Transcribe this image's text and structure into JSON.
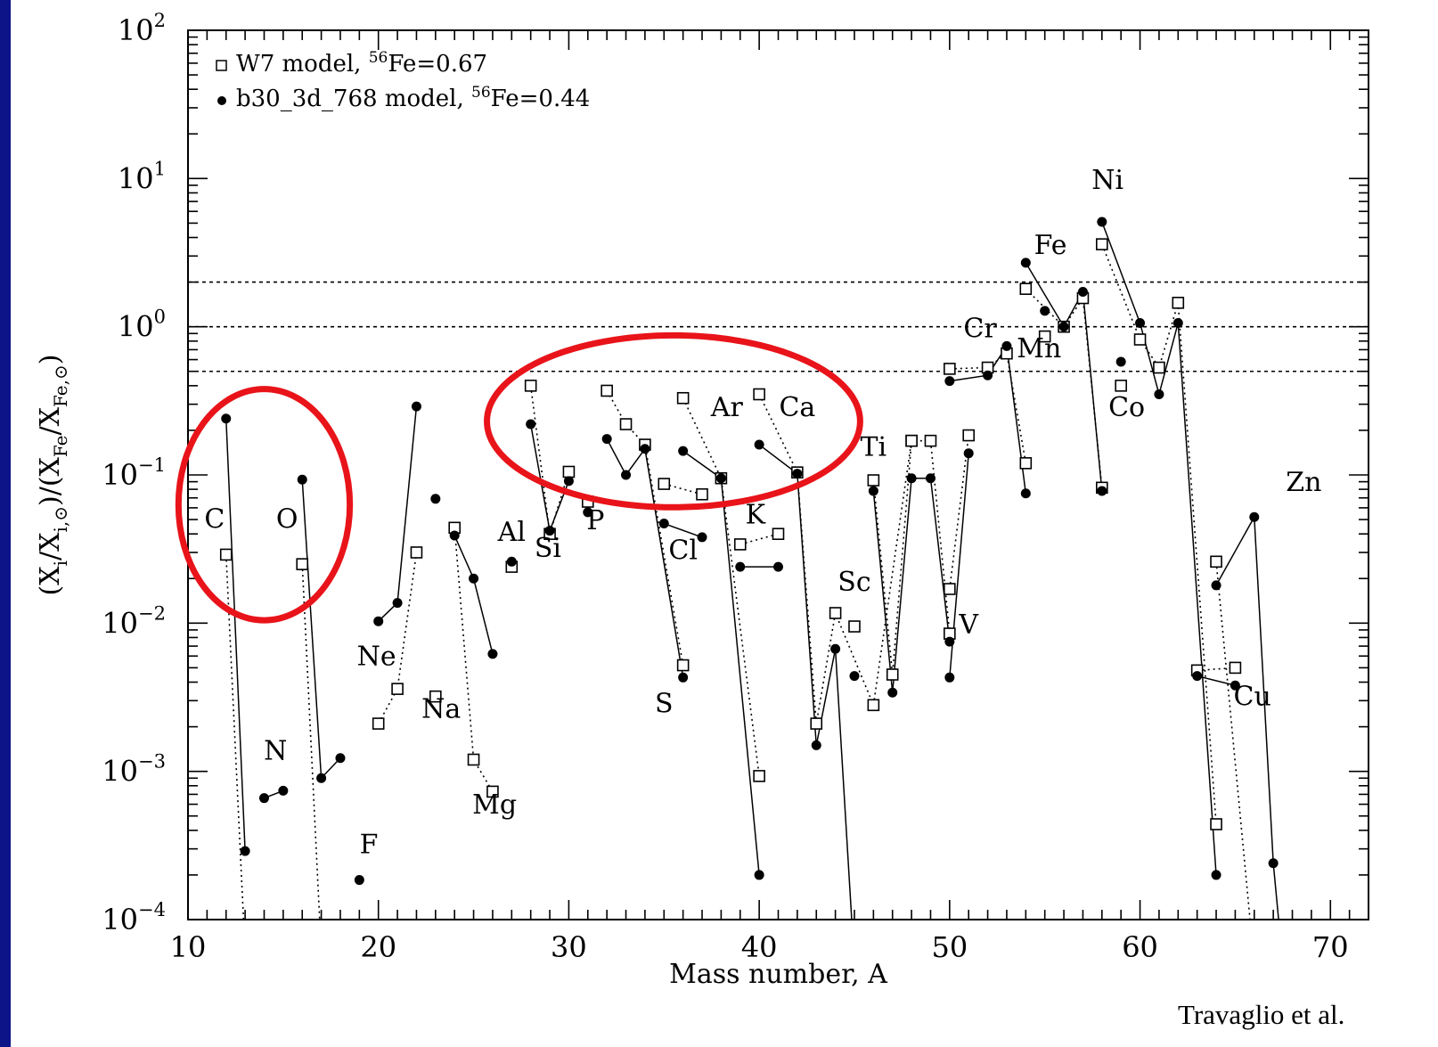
{
  "chart_data": {
    "type": "scatter",
    "y_scale": "log",
    "xlim": [
      10,
      72
    ],
    "ylim": [
      0.0001,
      100
    ],
    "xticks": [
      10,
      20,
      30,
      40,
      50,
      60,
      70
    ],
    "xtick_labels": [
      "10",
      "20",
      "30",
      "40",
      "50",
      "60",
      "70"
    ],
    "yticks": [
      0.0001,
      0.001,
      0.01,
      0.1,
      1,
      10,
      100
    ],
    "ytick_labels": [
      {
        "base": "10",
        "exp": "−4"
      },
      {
        "base": "10",
        "exp": "−3"
      },
      {
        "base": "10",
        "exp": "−2"
      },
      {
        "base": "10",
        "exp": "−1"
      },
      {
        "base": "10",
        "exp": "0"
      },
      {
        "base": "10",
        "exp": "1"
      },
      {
        "base": "10",
        "exp": "2"
      }
    ],
    "xlabel": "Mass number, A",
    "ylabel": {
      "a": "(X",
      "b": "i",
      "c": "/X",
      "d": "i,⊙",
      "e": ")/(X",
      "f": "Fe",
      "g": "/X",
      "h": "Fe,⊙",
      "i": ")"
    },
    "reference_lines": [
      2,
      1,
      0.5
    ],
    "legend": {
      "placement": "top-left",
      "items": [
        {
          "marker": "open-square",
          "pre": "W7 model, ",
          "sup": "56",
          "post": "Fe=0.67"
        },
        {
          "marker": "filled-circle",
          "pre": "b30_3d_768 model, ",
          "sup": "56",
          "post": "Fe=0.44"
        }
      ]
    },
    "series": [
      {
        "name": "W7 model",
        "marker": "open-square",
        "line": "dotted",
        "groups": [
          [
            [
              12,
              0.029
            ],
            [
              13,
              6e-05
            ]
          ],
          [
            [
              14,
              null
            ]
          ],
          [
            [
              16,
              0.025
            ],
            [
              17,
              6e-05
            ]
          ],
          [
            [
              20,
              0.0021
            ],
            [
              21,
              0.0036
            ],
            [
              22,
              0.03
            ]
          ],
          [
            [
              23,
              0.0032
            ]
          ],
          [
            [
              24,
              0.044
            ],
            [
              25,
              0.0012
            ],
            [
              26,
              0.00073
            ]
          ],
          [
            [
              27,
              0.024
            ]
          ],
          [
            [
              28,
              0.4
            ],
            [
              29,
              0.04
            ],
            [
              30,
              0.105
            ]
          ],
          [
            [
              31,
              0.066
            ]
          ],
          [
            [
              32,
              0.37
            ],
            [
              33,
              0.22
            ],
            [
              34,
              0.16
            ],
            [
              36,
              0.0052
            ]
          ],
          [
            [
              35,
              0.087
            ],
            [
              37,
              0.074
            ]
          ],
          [
            [
              36,
              0.33
            ],
            [
              38,
              0.095
            ],
            [
              40,
              0.00093
            ]
          ],
          [
            [
              39,
              0.034
            ],
            [
              41,
              0.04
            ]
          ],
          [
            [
              40,
              0.35
            ],
            [
              42,
              0.104
            ],
            [
              43,
              0.0021
            ],
            [
              44,
              0.0117
            ],
            [
              46,
              0.0028
            ],
            [
              48,
              0.17
            ]
          ],
          [
            [
              45,
              0.0095
            ]
          ],
          [
            [
              46,
              0.092
            ],
            [
              47,
              0.0045
            ],
            [
              48,
              0.17
            ],
            [
              49,
              0.17
            ],
            [
              50,
              0.0085
            ]
          ],
          [
            [
              50,
              0.017
            ],
            [
              51,
              0.185
            ]
          ],
          [
            [
              50,
              0.52
            ],
            [
              52,
              0.53
            ],
            [
              53,
              0.66
            ],
            [
              54,
              0.12
            ]
          ],
          [
            [
              55,
              0.86
            ]
          ],
          [
            [
              54,
              1.8
            ],
            [
              56,
              1.0
            ],
            [
              57,
              1.56
            ],
            [
              58,
              0.082
            ]
          ],
          [
            [
              59,
              0.4
            ]
          ],
          [
            [
              58,
              3.6
            ],
            [
              60,
              0.82
            ],
            [
              61,
              0.53
            ],
            [
              62,
              1.45
            ],
            [
              64,
              0.00044
            ]
          ],
          [
            [
              63,
              0.0048
            ],
            [
              65,
              0.005
            ]
          ],
          [
            [
              64,
              0.026
            ],
            [
              66,
              5e-05
            ]
          ]
        ]
      },
      {
        "name": "b30_3d_768 model",
        "marker": "filled-circle",
        "line": "solid",
        "groups": [
          [
            [
              12,
              0.24
            ],
            [
              13,
              0.00029
            ]
          ],
          [
            [
              14,
              0.00066
            ],
            [
              15,
              0.00074
            ]
          ],
          [
            [
              16,
              0.093
            ],
            [
              17,
              0.0009
            ],
            [
              18,
              0.00123
            ]
          ],
          [
            [
              19,
              0.000185
            ]
          ],
          [
            [
              20,
              0.0103
            ],
            [
              21,
              0.0137
            ],
            [
              22,
              0.29
            ]
          ],
          [
            [
              23,
              0.069
            ]
          ],
          [
            [
              24,
              0.039
            ],
            [
              25,
              0.02
            ],
            [
              26,
              0.0062
            ]
          ],
          [
            [
              27,
              0.026
            ]
          ],
          [
            [
              28,
              0.22
            ],
            [
              29,
              0.042
            ],
            [
              30,
              0.091
            ]
          ],
          [
            [
              31,
              0.056
            ]
          ],
          [
            [
              32,
              0.175
            ],
            [
              33,
              0.1
            ],
            [
              34,
              0.15
            ],
            [
              36,
              0.0043
            ]
          ],
          [
            [
              35,
              0.047
            ],
            [
              37,
              0.038
            ]
          ],
          [
            [
              36,
              0.145
            ],
            [
              38,
              0.095
            ],
            [
              40,
              0.0002
            ]
          ],
          [
            [
              39,
              0.024
            ],
            [
              41,
              0.024
            ]
          ],
          [
            [
              40,
              0.16
            ],
            [
              42,
              0.102
            ],
            [
              43,
              0.0015
            ],
            [
              44,
              0.0067
            ],
            [
              45,
              5e-05
            ]
          ],
          [
            [
              45,
              0.0044
            ]
          ],
          [
            [
              46,
              0.078
            ],
            [
              47,
              0.0034
            ],
            [
              48,
              0.095
            ],
            [
              49,
              0.095
            ],
            [
              50,
              0.0075
            ]
          ],
          [
            [
              50,
              0.0043
            ],
            [
              51,
              0.14
            ]
          ],
          [
            [
              50,
              0.43
            ],
            [
              52,
              0.47
            ],
            [
              53,
              0.74
            ],
            [
              54,
              0.075
            ]
          ],
          [
            [
              55,
              1.28
            ]
          ],
          [
            [
              54,
              2.7
            ],
            [
              56,
              1.0
            ],
            [
              57,
              1.72
            ],
            [
              58,
              0.078
            ]
          ],
          [
            [
              59,
              0.58
            ]
          ],
          [
            [
              58,
              5.1
            ],
            [
              60,
              1.06
            ],
            [
              61,
              0.35
            ],
            [
              62,
              1.06
            ],
            [
              64,
              0.0002
            ]
          ],
          [
            [
              63,
              0.0044
            ],
            [
              65,
              0.0038
            ]
          ],
          [
            [
              64,
              0.018
            ],
            [
              66,
              0.052
            ],
            [
              67,
              0.00024
            ],
            [
              67.5,
              5e-05
            ]
          ]
        ]
      }
    ],
    "element_labels": [
      {
        "text": "C",
        "x": 11.4,
        "y": 0.044
      },
      {
        "text": "N",
        "x": 14.6,
        "y": 0.0012
      },
      {
        "text": "O",
        "x": 15.2,
        "y": 0.044
      },
      {
        "text": "F",
        "x": 19.5,
        "y": 0.00028
      },
      {
        "text": "Ne",
        "x": 19.9,
        "y": 0.0052
      },
      {
        "text": "Na",
        "x": 23.3,
        "y": 0.0023
      },
      {
        "text": "Mg",
        "x": 26.1,
        "y": 0.00052
      },
      {
        "text": "Al",
        "x": 27.0,
        "y": 0.036
      },
      {
        "text": "Si",
        "x": 28.9,
        "y": 0.028
      },
      {
        "text": "P",
        "x": 31.4,
        "y": 0.043
      },
      {
        "text": "S",
        "x": 35.0,
        "y": 0.0025
      },
      {
        "text": "Cl",
        "x": 36.0,
        "y": 0.027
      },
      {
        "text": "Ar",
        "x": 38.3,
        "y": 0.25
      },
      {
        "text": "K",
        "x": 39.8,
        "y": 0.047
      },
      {
        "text": "Ca",
        "x": 42.0,
        "y": 0.25
      },
      {
        "text": "Sc",
        "x": 45.0,
        "y": 0.0165
      },
      {
        "text": "Ti",
        "x": 46.0,
        "y": 0.135
      },
      {
        "text": "V",
        "x": 51.0,
        "y": 0.0085
      },
      {
        "text": "Cr",
        "x": 51.6,
        "y": 0.85
      },
      {
        "text": "Mn",
        "x": 54.7,
        "y": 0.62
      },
      {
        "text": "Fe",
        "x": 55.3,
        "y": 3.1
      },
      {
        "text": "Co",
        "x": 59.3,
        "y": 0.25
      },
      {
        "text": "Ni",
        "x": 58.3,
        "y": 8.5
      },
      {
        "text": "Zn",
        "x": 68.6,
        "y": 0.078
      },
      {
        "text": "Cu",
        "x": 65.9,
        "y": 0.0028
      }
    ],
    "highlights": [
      {
        "shape": "ellipse",
        "cx": 14.0,
        "cy": 0.063,
        "rx_units": 4.5,
        "ry_decades": 1.56
      },
      {
        "shape": "ellipse",
        "cx": 35.5,
        "cy": 0.23,
        "rx_units": 9.8,
        "ry_decades": 1.16
      }
    ]
  },
  "credit": "Travaglio et al."
}
